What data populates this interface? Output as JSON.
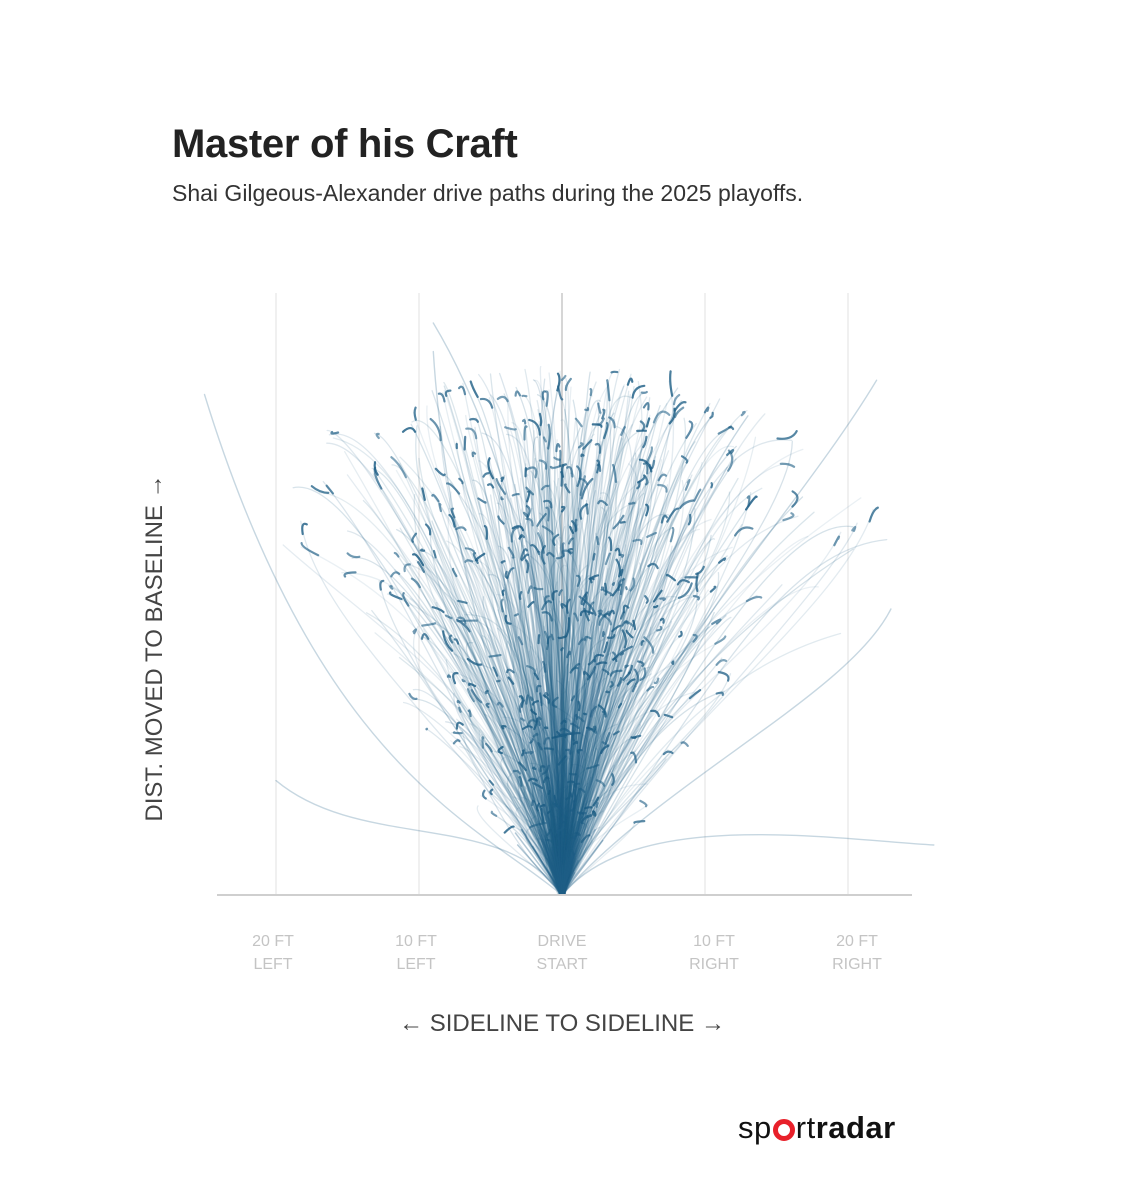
{
  "header": {
    "title": "Master of his Craft",
    "subtitle": "Shai Gilgeous-Alexander drive paths during the 2025 playoffs."
  },
  "logo": {
    "part1": "sp",
    "part2": "rt",
    "part3": "radar",
    "accent_color": "#e8202a"
  },
  "chart_data": {
    "type": "line",
    "xlabel": "← SIDELINE TO SIDELINE →",
    "ylabel": "DIST. MOVED TO BASELINE →",
    "x_ticks": [
      {
        "value": -20,
        "line1": "20 FT",
        "line2": "LEFT"
      },
      {
        "value": -10,
        "line1": "10 FT",
        "line2": "LEFT"
      },
      {
        "value": 0,
        "line1": "DRIVE",
        "line2": "START"
      },
      {
        "value": 10,
        "line1": "10 FT",
        "line2": "RIGHT"
      },
      {
        "value": 20,
        "line1": "20 FT",
        "line2": "RIGHT"
      }
    ],
    "xlim": [
      -24,
      24
    ],
    "ylim": [
      0,
      42
    ],
    "grid": true,
    "path_color": "#1f5f86",
    "path_count": 900,
    "series": [
      {
        "values": [
          [
            0,
            0
          ],
          [
            2,
            10
          ],
          [
            7,
            25
          ],
          [
            13,
            33.5
          ]
        ]
      },
      {
        "values": [
          [
            0,
            0
          ],
          [
            -3,
            10
          ],
          [
            -8,
            22
          ],
          [
            -9,
            38
          ]
        ]
      },
      {
        "values": [
          [
            0,
            0
          ],
          [
            -6,
            5
          ],
          [
            -17,
            9
          ],
          [
            -25,
            35
          ]
        ]
      },
      {
        "values": [
          [
            0,
            0
          ],
          [
            5,
            6
          ],
          [
            18,
            4
          ],
          [
            26,
            3.5
          ]
        ]
      },
      {
        "values": [
          [
            0,
            0
          ],
          [
            1,
            12
          ],
          [
            -3,
            30
          ],
          [
            -9,
            40
          ]
        ]
      },
      {
        "values": [
          [
            0,
            0
          ],
          [
            4,
            14
          ],
          [
            16,
            26
          ],
          [
            22,
            36
          ]
        ]
      },
      {
        "values": [
          [
            0,
            0
          ],
          [
            -4,
            6
          ],
          [
            -14,
            3
          ],
          [
            -20,
            8
          ]
        ]
      },
      {
        "values": [
          [
            0,
            0
          ],
          [
            7,
            8
          ],
          [
            20,
            14
          ],
          [
            23,
            20
          ]
        ]
      }
    ]
  }
}
